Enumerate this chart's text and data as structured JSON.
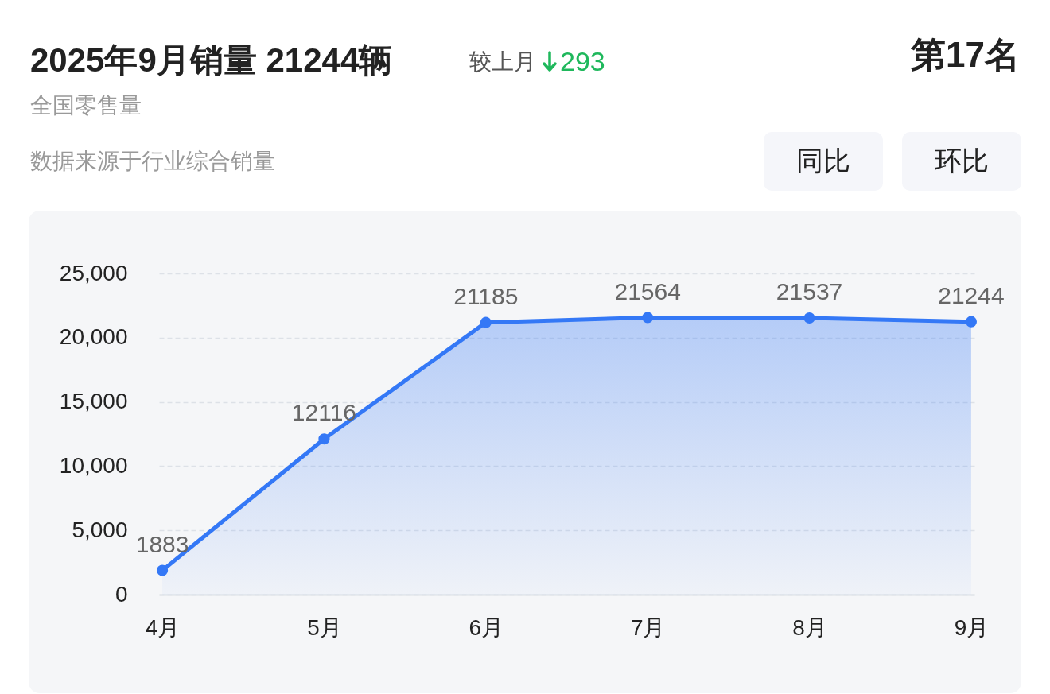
{
  "chart_data": {
    "type": "area",
    "title": "2025年9月销量 21244辆",
    "subtitle": "全国零售量",
    "annotations": [
      "较上月",
      "293",
      "第17名",
      "数据来源于行业综合销量",
      "同比",
      "环比"
    ],
    "categories": [
      "4月",
      "5月",
      "6月",
      "7月",
      "8月",
      "9月"
    ],
    "series": [
      {
        "color": "#3478f6",
        "values": [
          1883,
          12116,
          21185,
          21564,
          21537,
          21244
        ]
      }
    ],
    "ylim": [
      0,
      25000
    ],
    "yticks": [
      0,
      {
        "value": 5000,
        "label": "5,000"
      },
      {
        "value": 10000,
        "label": "10,000"
      },
      {
        "value": 15000,
        "label": "15,000"
      },
      {
        "value": 20000,
        "label": "20,000"
      },
      {
        "value": 25000,
        "label": "25,000"
      }
    ],
    "grid": "y",
    "marker": "circle",
    "data_labels": true
  }
}
